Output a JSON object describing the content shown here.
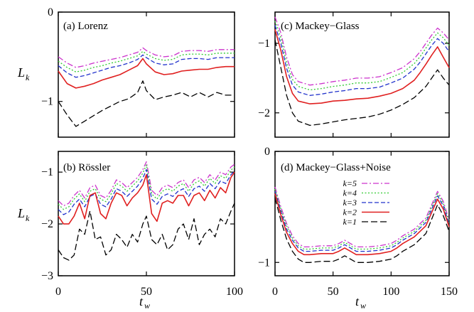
{
  "figure": {
    "ylabel_main": "L",
    "ylabel_sub": "k",
    "xlabel_main": "t",
    "xlabel_sub": "w"
  },
  "legend_entries": [
    {
      "label": "k=5",
      "color": "#cc33cc",
      "dash": "dashdot"
    },
    {
      "label": "k=4",
      "color": "#33cc33",
      "dash": "dot"
    },
    {
      "label": "k=3",
      "color": "#2233cc",
      "dash": "dash"
    },
    {
      "label": "k=2",
      "color": "#e02020",
      "dash": "solid"
    },
    {
      "label": "k=1",
      "color": "#000000",
      "dash": "longdash"
    }
  ],
  "chart_data": [
    {
      "id": "lorenz",
      "type": "line",
      "title": "(a) Lorenz",
      "xlim": [
        0,
        100
      ],
      "ylim": [
        -1.4,
        0
      ],
      "xticks": [
        0,
        50,
        100
      ],
      "yticks": [
        0,
        -1
      ],
      "xtick_labels": [
        "",
        "",
        ""
      ],
      "ytick_labels": [
        "0",
        "−1"
      ],
      "x": [
        0,
        5,
        10,
        15,
        20,
        25,
        30,
        35,
        40,
        45,
        48,
        50,
        55,
        60,
        65,
        70,
        75,
        80,
        85,
        90,
        95,
        100
      ],
      "series": [
        {
          "name": "k=5",
          "values": [
            -0.5,
            -0.57,
            -0.62,
            -0.6,
            -0.57,
            -0.55,
            -0.53,
            -0.51,
            -0.48,
            -0.45,
            -0.4,
            -0.43,
            -0.48,
            -0.5,
            -0.49,
            -0.44,
            -0.43,
            -0.43,
            -0.44,
            -0.42,
            -0.42,
            -0.42
          ]
        },
        {
          "name": "k=4",
          "values": [
            -0.55,
            -0.62,
            -0.67,
            -0.65,
            -0.62,
            -0.6,
            -0.57,
            -0.55,
            -0.52,
            -0.49,
            -0.44,
            -0.47,
            -0.52,
            -0.54,
            -0.53,
            -0.48,
            -0.47,
            -0.47,
            -0.48,
            -0.46,
            -0.46,
            -0.46
          ]
        },
        {
          "name": "k=3",
          "values": [
            -0.6,
            -0.68,
            -0.73,
            -0.71,
            -0.68,
            -0.65,
            -0.62,
            -0.6,
            -0.57,
            -0.53,
            -0.48,
            -0.51,
            -0.57,
            -0.59,
            -0.58,
            -0.53,
            -0.52,
            -0.52,
            -0.53,
            -0.51,
            -0.51,
            -0.51
          ]
        },
        {
          "name": "k=2",
          "values": [
            -0.66,
            -0.8,
            -0.85,
            -0.83,
            -0.8,
            -0.76,
            -0.73,
            -0.7,
            -0.65,
            -0.6,
            -0.52,
            -0.58,
            -0.67,
            -0.7,
            -0.69,
            -0.66,
            -0.65,
            -0.64,
            -0.64,
            -0.62,
            -0.61,
            -0.61
          ]
        },
        {
          "name": "k=1",
          "values": [
            -1.0,
            -1.15,
            -1.28,
            -1.22,
            -1.16,
            -1.1,
            -1.05,
            -1.0,
            -0.97,
            -0.9,
            -0.77,
            -0.88,
            -0.98,
            -0.95,
            -0.93,
            -0.9,
            -0.95,
            -0.9,
            -0.95,
            -0.9,
            -0.93,
            -0.93
          ]
        }
      ]
    },
    {
      "id": "mackey-glass",
      "type": "line",
      "title": "(c) Mackey−Glass",
      "xlim": [
        0,
        150
      ],
      "ylim": [
        -2.35,
        -0.55
      ],
      "xticks": [
        0,
        50,
        100,
        150
      ],
      "yticks": [
        -1,
        -2
      ],
      "xtick_labels": [
        "",
        "",
        "",
        ""
      ],
      "ytick_labels": [
        "−1",
        "−2"
      ],
      "x": [
        0,
        5,
        10,
        15,
        20,
        30,
        40,
        50,
        60,
        70,
        80,
        90,
        100,
        110,
        120,
        125,
        130,
        135,
        140,
        145,
        150
      ],
      "series": [
        {
          "name": "k=5",
          "values": [
            -0.62,
            -0.85,
            -1.2,
            -1.45,
            -1.55,
            -1.6,
            -1.58,
            -1.55,
            -1.53,
            -1.5,
            -1.5,
            -1.48,
            -1.42,
            -1.35,
            -1.22,
            -1.12,
            -1.0,
            -0.88,
            -0.78,
            -0.85,
            -0.95
          ]
        },
        {
          "name": "k=4",
          "values": [
            -0.68,
            -0.92,
            -1.28,
            -1.52,
            -1.62,
            -1.67,
            -1.65,
            -1.62,
            -1.6,
            -1.57,
            -1.57,
            -1.55,
            -1.49,
            -1.42,
            -1.29,
            -1.19,
            -1.07,
            -0.95,
            -0.85,
            -0.92,
            -1.03
          ]
        },
        {
          "name": "k=3",
          "values": [
            -0.74,
            -1.0,
            -1.36,
            -1.6,
            -1.7,
            -1.75,
            -1.73,
            -1.7,
            -1.68,
            -1.65,
            -1.65,
            -1.63,
            -1.57,
            -1.5,
            -1.37,
            -1.27,
            -1.15,
            -1.03,
            -0.93,
            -1.0,
            -1.12
          ]
        },
        {
          "name": "k=2",
          "values": [
            -0.8,
            -1.1,
            -1.48,
            -1.72,
            -1.83,
            -1.87,
            -1.86,
            -1.83,
            -1.82,
            -1.8,
            -1.79,
            -1.76,
            -1.72,
            -1.65,
            -1.53,
            -1.42,
            -1.3,
            -1.17,
            -1.05,
            -1.2,
            -1.35
          ]
        },
        {
          "name": "k=1",
          "values": [
            -0.95,
            -1.35,
            -1.75,
            -2.0,
            -2.12,
            -2.18,
            -2.16,
            -2.13,
            -2.1,
            -2.08,
            -2.06,
            -2.02,
            -1.96,
            -1.88,
            -1.78,
            -1.7,
            -1.62,
            -1.5,
            -1.38,
            -1.5,
            -1.6
          ]
        }
      ]
    },
    {
      "id": "rossler",
      "type": "line",
      "title": "(b) Rössler",
      "xlim": [
        0,
        100
      ],
      "ylim": [
        -3,
        -0.6
      ],
      "xticks": [
        0,
        50,
        100
      ],
      "yticks": [
        -1,
        -2,
        -3
      ],
      "xtick_labels": [
        "0",
        "50",
        "100"
      ],
      "ytick_labels": [
        "−1",
        "−2",
        "−3"
      ],
      "x": [
        0,
        3,
        6,
        9,
        12,
        15,
        18,
        21,
        24,
        27,
        30,
        33,
        36,
        39,
        42,
        45,
        48,
        50,
        53,
        56,
        59,
        62,
        65,
        68,
        71,
        74,
        77,
        80,
        83,
        86,
        89,
        92,
        95,
        98,
        100
      ],
      "series": [
        {
          "name": "k=5",
          "values": [
            -1.55,
            -1.65,
            -1.6,
            -1.45,
            -1.35,
            -1.5,
            -1.3,
            -1.25,
            -1.45,
            -1.5,
            -1.35,
            -1.15,
            -1.2,
            -1.3,
            -1.2,
            -1.1,
            -0.95,
            -0.8,
            -1.35,
            -1.45,
            -1.3,
            -1.25,
            -1.3,
            -1.2,
            -1.15,
            -1.3,
            -1.15,
            -1.1,
            -1.2,
            -1.05,
            -1.15,
            -1.0,
            -1.05,
            -0.9,
            -0.85
          ]
        },
        {
          "name": "k=4",
          "values": [
            -1.62,
            -1.72,
            -1.67,
            -1.52,
            -1.42,
            -1.57,
            -1.37,
            -1.32,
            -1.52,
            -1.57,
            -1.42,
            -1.22,
            -1.27,
            -1.37,
            -1.27,
            -1.17,
            -1.02,
            -0.86,
            -1.42,
            -1.52,
            -1.37,
            -1.32,
            -1.37,
            -1.27,
            -1.22,
            -1.37,
            -1.22,
            -1.17,
            -1.27,
            -1.12,
            -1.22,
            -1.07,
            -1.12,
            -0.96,
            -0.9
          ]
        },
        {
          "name": "k=3",
          "values": [
            -1.72,
            -1.82,
            -1.77,
            -1.62,
            -1.52,
            -1.67,
            -1.47,
            -1.42,
            -1.62,
            -1.67,
            -1.52,
            -1.32,
            -1.37,
            -1.47,
            -1.37,
            -1.27,
            -1.12,
            -0.95,
            -1.52,
            -1.62,
            -1.47,
            -1.42,
            -1.47,
            -1.37,
            -1.32,
            -1.47,
            -1.32,
            -1.27,
            -1.37,
            -1.22,
            -1.32,
            -1.17,
            -1.22,
            -1.05,
            -0.98
          ]
        },
        {
          "name": "k=2",
          "values": [
            -1.85,
            -2.0,
            -2.0,
            -1.85,
            -1.6,
            -1.9,
            -1.45,
            -1.4,
            -1.8,
            -1.9,
            -1.6,
            -1.4,
            -1.45,
            -1.65,
            -1.5,
            -1.4,
            -1.25,
            -1.05,
            -1.8,
            -1.95,
            -1.6,
            -1.55,
            -1.6,
            -1.45,
            -1.45,
            -1.65,
            -1.45,
            -1.4,
            -1.55,
            -1.35,
            -1.5,
            -1.3,
            -1.4,
            -1.1,
            -1.0
          ]
        },
        {
          "name": "k=1",
          "values": [
            -2.5,
            -2.65,
            -2.7,
            -2.6,
            -2.1,
            -2.2,
            -1.75,
            -2.3,
            -2.25,
            -2.6,
            -2.5,
            -2.2,
            -2.3,
            -2.45,
            -2.2,
            -2.35,
            -2.0,
            -1.85,
            -2.3,
            -2.4,
            -2.2,
            -2.5,
            -2.4,
            -2.1,
            -2.0,
            -2.3,
            -1.9,
            -2.4,
            -2.2,
            -2.1,
            -2.25,
            -1.9,
            -2.0,
            -1.75,
            -1.6
          ]
        }
      ]
    },
    {
      "id": "mackey-glass-noise",
      "type": "line",
      "title": "(d) Mackey−Glass+Noise",
      "xlim": [
        0,
        150
      ],
      "ylim": [
        -1.12,
        0
      ],
      "xticks": [
        0,
        50,
        100,
        150
      ],
      "yticks": [
        0,
        -1
      ],
      "xtick_labels": [
        "0",
        "50",
        "100",
        "150"
      ],
      "ytick_labels": [
        "0",
        "−1"
      ],
      "x": [
        0,
        5,
        10,
        15,
        20,
        25,
        30,
        40,
        50,
        55,
        60,
        65,
        70,
        80,
        90,
        100,
        105,
        110,
        120,
        130,
        135,
        140,
        145,
        150
      ],
      "series": [
        {
          "name": "k=5",
          "values": [
            -0.32,
            -0.5,
            -0.65,
            -0.76,
            -0.83,
            -0.86,
            -0.86,
            -0.85,
            -0.85,
            -0.83,
            -0.8,
            -0.83,
            -0.86,
            -0.86,
            -0.85,
            -0.83,
            -0.8,
            -0.76,
            -0.7,
            -0.6,
            -0.48,
            -0.36,
            -0.45,
            -0.62
          ]
        },
        {
          "name": "k=4",
          "values": [
            -0.34,
            -0.52,
            -0.67,
            -0.78,
            -0.85,
            -0.88,
            -0.88,
            -0.87,
            -0.87,
            -0.85,
            -0.82,
            -0.85,
            -0.88,
            -0.88,
            -0.87,
            -0.85,
            -0.82,
            -0.78,
            -0.72,
            -0.62,
            -0.5,
            -0.38,
            -0.47,
            -0.64
          ]
        },
        {
          "name": "k=3",
          "values": [
            -0.36,
            -0.54,
            -0.7,
            -0.8,
            -0.87,
            -0.9,
            -0.9,
            -0.89,
            -0.89,
            -0.87,
            -0.84,
            -0.87,
            -0.9,
            -0.9,
            -0.89,
            -0.87,
            -0.84,
            -0.8,
            -0.74,
            -0.64,
            -0.52,
            -0.4,
            -0.49,
            -0.66
          ]
        },
        {
          "name": "k=2",
          "values": [
            -0.38,
            -0.57,
            -0.73,
            -0.83,
            -0.9,
            -0.93,
            -0.93,
            -0.92,
            -0.92,
            -0.9,
            -0.87,
            -0.9,
            -0.93,
            -0.93,
            -0.92,
            -0.9,
            -0.87,
            -0.83,
            -0.77,
            -0.67,
            -0.55,
            -0.43,
            -0.52,
            -0.68
          ]
        },
        {
          "name": "k=1",
          "values": [
            -0.42,
            -0.62,
            -0.79,
            -0.9,
            -0.97,
            -1.0,
            -1.0,
            -0.99,
            -0.99,
            -0.97,
            -0.94,
            -0.97,
            -1.0,
            -1.0,
            -0.99,
            -0.97,
            -0.94,
            -0.9,
            -0.84,
            -0.74,
            -0.61,
            -0.48,
            -0.58,
            -0.72
          ]
        }
      ]
    }
  ]
}
